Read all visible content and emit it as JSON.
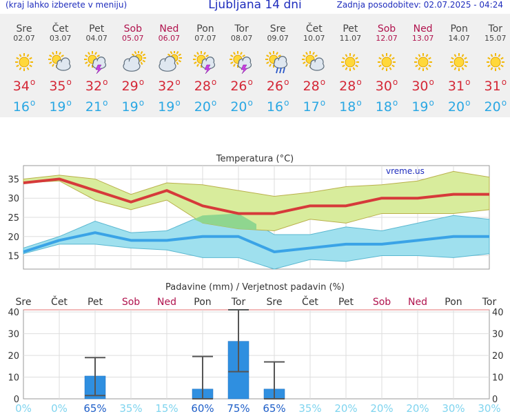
{
  "header": {
    "left_note": "(kraj lahko izberete v meniju)",
    "title": "Ljubljana 14 dni",
    "updated": "Zadnja posodobitev: 02.07.2025 - 04:24"
  },
  "days": [
    {
      "name": "Sre",
      "date": "02.07",
      "weekend": false,
      "icon": "sun-icon",
      "tmax": "34",
      "tmin": "16"
    },
    {
      "name": "Čet",
      "date": "03.07",
      "weekend": false,
      "icon": "sun-cloud-icon",
      "tmax": "35",
      "tmin": "19"
    },
    {
      "name": "Pet",
      "date": "04.07",
      "weekend": false,
      "icon": "sun-cloud-thunder-icon",
      "tmax": "32",
      "tmin": "21"
    },
    {
      "name": "Sob",
      "date": "05.07",
      "weekend": true,
      "icon": "cloud-sun-icon",
      "tmax": "29",
      "tmin": "19"
    },
    {
      "name": "Ned",
      "date": "06.07",
      "weekend": true,
      "icon": "cloud-sun-icon",
      "tmax": "32",
      "tmin": "19"
    },
    {
      "name": "Pon",
      "date": "07.07",
      "weekend": false,
      "icon": "sun-cloud-thunder-icon",
      "tmax": "28",
      "tmin": "20"
    },
    {
      "name": "Tor",
      "date": "08.07",
      "weekend": false,
      "icon": "sun-cloud-thunder-icon",
      "tmax": "26",
      "tmin": "20"
    },
    {
      "name": "Sre",
      "date": "09.07",
      "weekend": false,
      "icon": "sun-cloud-rain-icon",
      "tmax": "26",
      "tmin": "16"
    },
    {
      "name": "Čet",
      "date": "10.07",
      "weekend": false,
      "icon": "sun-cloud-icon",
      "tmax": "28",
      "tmin": "17"
    },
    {
      "name": "Pet",
      "date": "11.07",
      "weekend": false,
      "icon": "sun-icon",
      "tmax": "28",
      "tmin": "18"
    },
    {
      "name": "Sob",
      "date": "12.07",
      "weekend": true,
      "icon": "sun-icon",
      "tmax": "30",
      "tmin": "18"
    },
    {
      "name": "Ned",
      "date": "13.07",
      "weekend": true,
      "icon": "sun-icon",
      "tmax": "30",
      "tmin": "19"
    },
    {
      "name": "Pon",
      "date": "14.07",
      "weekend": false,
      "icon": "sun-icon",
      "tmax": "31",
      "tmin": "20"
    },
    {
      "name": "Tor",
      "date": "15.07",
      "weekend": false,
      "icon": "sun-icon",
      "tmax": "31",
      "tmin": "20"
    }
  ],
  "degree_symbol": "o",
  "colors": {
    "title_blue": "#1f2dbd",
    "weekend": "#b0124d",
    "tmax_red": "#d42837",
    "tmin_blue": "#2aa7e3",
    "max_band": "#d8ec9c",
    "min_band": "#9fe0ee",
    "overlap_band": "#8fd68f",
    "bar_blue": "#2f8fe0"
  },
  "chart_data": [
    {
      "type": "line",
      "title": "Temperatura (°C)",
      "watermark": "vreme.us",
      "x": [
        "Sre",
        "Čet",
        "Pet",
        "Sob",
        "Ned",
        "Pon",
        "Tor",
        "Sre",
        "Čet",
        "Pet",
        "Sob",
        "Ned",
        "Pon",
        "Tor"
      ],
      "ylim": [
        11.5,
        38.5
      ],
      "yticks": [
        15,
        20,
        25,
        30,
        35
      ],
      "grid": true,
      "series": [
        {
          "role": "max",
          "values": [
            34,
            35,
            32,
            29,
            32,
            28,
            26,
            26,
            28,
            28,
            30,
            30,
            31,
            31
          ],
          "band_high": [
            35,
            36,
            35,
            31,
            34,
            33.5,
            32,
            30.5,
            31.5,
            33,
            33.5,
            34.5,
            37,
            35.5
          ],
          "band_low": [
            34,
            34.5,
            29.5,
            27,
            29.5,
            23.5,
            22,
            21.5,
            24.5,
            23.5,
            26,
            26,
            26,
            27
          ]
        },
        {
          "role": "min",
          "values": [
            16,
            19,
            21,
            19,
            19,
            20,
            20,
            16,
            17,
            18,
            18,
            19,
            20,
            20
          ],
          "band_high": [
            17,
            20,
            24,
            21,
            21.5,
            25.5,
            26,
            20.5,
            20.5,
            22.5,
            21.5,
            23.5,
            25.5,
            24.5
          ],
          "band_low": [
            15.5,
            18,
            18,
            17,
            16.5,
            14.5,
            14.5,
            11.5,
            14,
            13.5,
            15,
            15,
            14.5,
            15.5
          ]
        }
      ]
    },
    {
      "type": "bar",
      "title": "Padavine (mm) / Verjetnost padavin (%)",
      "categories": [
        "Sre",
        "Čet",
        "Pet",
        "Sob",
        "Ned",
        "Pon",
        "Tor",
        "Sre",
        "Čet",
        "Pet",
        "Sob",
        "Ned",
        "Pon",
        "Tor"
      ],
      "values": [
        0,
        0,
        10.5,
        0,
        0,
        4.5,
        26.5,
        4.5,
        0,
        0,
        0,
        0,
        0,
        0
      ],
      "error_low": [
        0,
        0,
        1.5,
        0,
        0,
        0,
        12.5,
        0,
        0,
        0,
        0,
        0,
        0,
        0
      ],
      "error_high": [
        0,
        0,
        19,
        0,
        0,
        19.5,
        41,
        17,
        0,
        0,
        0,
        0,
        0,
        0
      ],
      "probability": [
        "0%",
        "0%",
        "65%",
        "35%",
        "15%",
        "60%",
        "75%",
        "65%",
        "35%",
        "20%",
        "20%",
        "20%",
        "30%",
        "30%"
      ],
      "ylim": [
        0,
        41
      ],
      "yticks": [
        0,
        10,
        20,
        30,
        40
      ],
      "grid": true
    }
  ]
}
